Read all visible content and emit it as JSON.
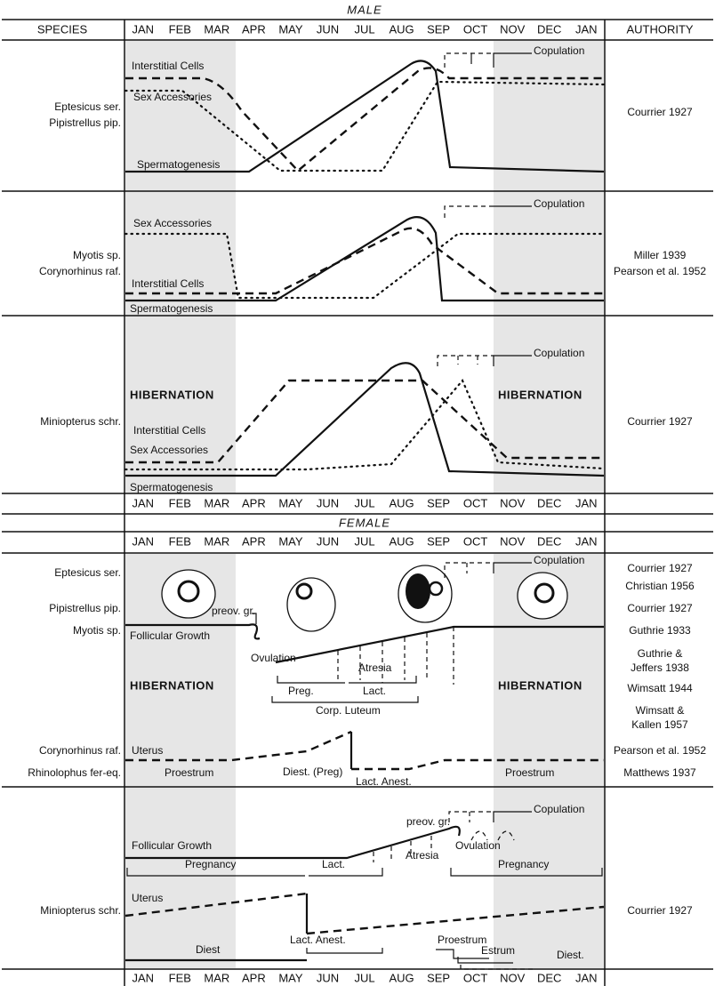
{
  "male_title": "MALE",
  "female_title": "FEMALE",
  "columns": {
    "species": "SPECIES",
    "authority": "AUTHORITY"
  },
  "months": [
    "JAN",
    "FEB",
    "MAR",
    "APR",
    "MAY",
    "JUN",
    "JUL",
    "AUG",
    "SEP",
    "OCT",
    "NOV",
    "DEC",
    "JAN"
  ],
  "male_panels": [
    {
      "species": [
        "Eptesicus ser.",
        "Pipistrellus pip."
      ],
      "authority": [
        "Courrier 1927"
      ],
      "labels": [
        "Interstitial Cells",
        "Sex Accessories",
        "Spermatogenesis",
        "Copulation"
      ]
    },
    {
      "species": [
        "Myotis sp.",
        "Corynorhinus raf."
      ],
      "authority": [
        "Miller 1939",
        "Pearson et al. 1952"
      ],
      "labels": [
        "Sex Accessories",
        "Interstitial Cells",
        "Spermatogenesis",
        "Copulation"
      ]
    },
    {
      "species": [
        "Miniopterus schr."
      ],
      "authority": [
        "Courrier 1927"
      ],
      "labels": [
        "HIBERNATION",
        "HIBERNATION",
        "Interstitial Cells",
        "Sex Accessories",
        "Spermatogenesis",
        "Copulation"
      ]
    }
  ],
  "female_panels": [
    {
      "species": [
        "Eptesicus ser.",
        "Pipistrellus pip.",
        "Myotis sp.",
        "Corynorhinus raf.",
        "Rhinolophus fer-eq."
      ],
      "authority": [
        "Courrier 1927",
        "Christian 1956",
        "Courrier 1927",
        "Guthrie 1933",
        "Guthrie &",
        "Jeffers 1938",
        "Wimsatt 1944",
        "Wimsatt &",
        "Kallen 1957",
        "Pearson et al. 1952",
        "Matthews 1937"
      ],
      "labels": [
        "Copulation",
        "preov. gr.",
        "Follicular Growth",
        "Ovulation",
        "HIBERNATION",
        "Atresia",
        "Preg.",
        "Lact.",
        "Corp. Luteum",
        "HIBERNATION",
        "Uterus",
        "Proestrum",
        "Diest. (Preg)",
        "Lact. Anest.",
        "Proestrum"
      ]
    },
    {
      "species": [
        "Miniopterus schr."
      ],
      "authority": [
        "Courrier 1927"
      ],
      "labels": [
        "Copulation",
        "preov. gr.",
        "Follicular Growth",
        "Atresia",
        "Ovulation",
        "Pregnancy",
        "Lact.",
        "Pregnancy",
        "Uterus",
        "Diest",
        "Lact. Anest.",
        "Proestrum",
        "Estrum",
        "Diest."
      ]
    }
  ]
}
